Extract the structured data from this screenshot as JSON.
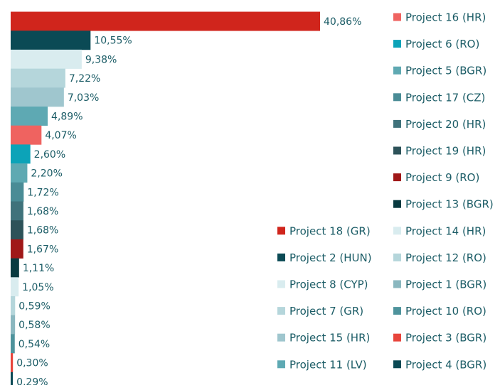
{
  "chart_data": {
    "type": "bar",
    "categories": [
      "Project 18 (GR)",
      "Project 2 (HUN)",
      "Project 8 (CYP)",
      "Project 7 (GR)",
      "Project 15 (HR)",
      "Project 11 (LV)",
      "Project 16 (HR)",
      "Project 6 (RO)",
      "Project 5 (BGR)",
      "Project 17 (CZ)",
      "Project 20 (HR)",
      "Project 19 (HR)",
      "Project 9 (RO)",
      "Project 13 (BGR)",
      "Project 14 (HR)",
      "Project 12 (RO)",
      "Project 1 (BGR)",
      "Project 10 (RO)",
      "Project 3 (BGR)",
      "Project 4 (BGR)"
    ],
    "values": [
      40.86,
      10.55,
      9.38,
      7.22,
      7.03,
      4.89,
      4.07,
      2.6,
      2.2,
      1.72,
      1.68,
      1.68,
      1.67,
      1.11,
      1.05,
      0.59,
      0.58,
      0.54,
      0.3,
      0.29
    ],
    "value_labels": [
      "40,86%",
      "10,55%",
      "9,38%",
      "7,22%",
      "7,03%",
      "4,89%",
      "4,07%",
      "2,60%",
      "2,20%",
      "1,72%",
      "1,68%",
      "1,68%",
      "1,67%",
      "1,11%",
      "1,05%",
      "0,59%",
      "0,58%",
      "0,54%",
      "0,30%",
      "0,29%"
    ],
    "colors": [
      "#d0251c",
      "#0b4a55",
      "#d9ecef",
      "#b5d6db",
      "#9fc6ce",
      "#5ea9b3",
      "#ef6360",
      "#0ca3b8",
      "#5fa9b2",
      "#4a8c96",
      "#3f727b",
      "#2d5259",
      "#a01818",
      "#083a40",
      "#d9ecef",
      "#b5d6db",
      "#8ab7bf",
      "#4e939c",
      "#e8453c",
      "#0b4a55"
    ]
  }
}
